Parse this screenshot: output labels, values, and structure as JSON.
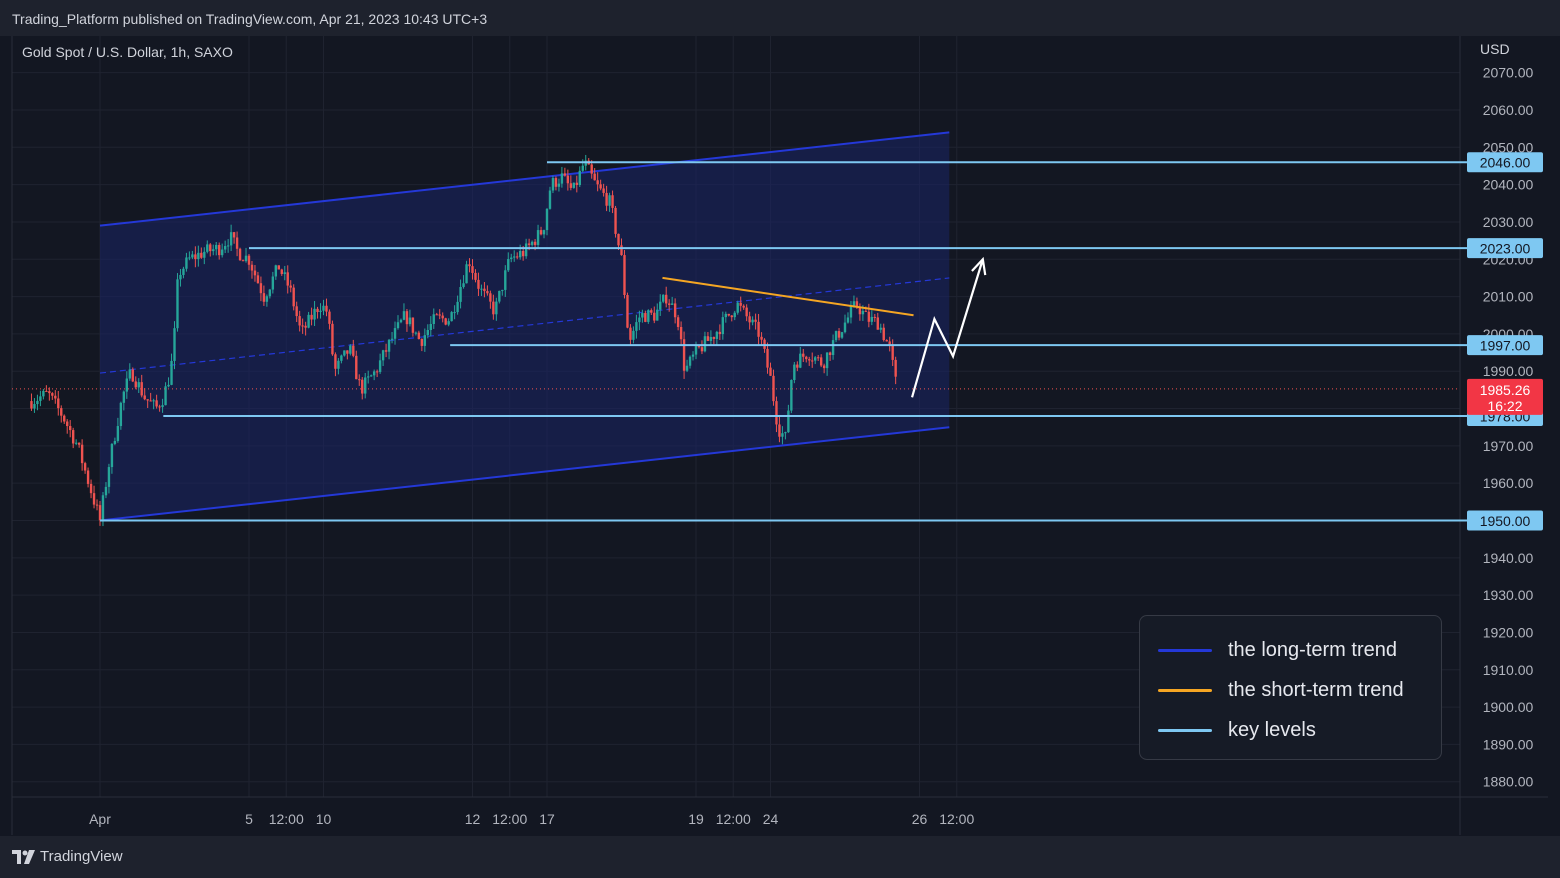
{
  "header": {
    "published": "Trading_Platform published on TradingView.com, Apr 21, 2023 10:43 UTC+3",
    "symbol": "Gold Spot / U.S. Dollar, 1h, SAXO",
    "currency": "USD"
  },
  "footer": {
    "brand": "TradingView",
    "logo_icon": "tradingview-logo-icon"
  },
  "colors": {
    "background": "#131722",
    "grid": "#1f2330",
    "up_candle": "#26a69a",
    "down_candle": "#ef5350",
    "long_term": "#2438d8",
    "short_term": "#f5a623",
    "key_level": "#7ec8f2",
    "channel_fill": "#1a2466"
  },
  "chart_data": {
    "type": "candlestick",
    "title": "Gold Spot / U.S. Dollar, 1h, SAXO",
    "ylabel": "USD",
    "ylim": [
      1876,
      2075
    ],
    "y_ticks": [
      2070,
      2060,
      2050,
      2040,
      2030,
      2020,
      2010,
      2000,
      1990,
      1980,
      1970,
      1960,
      1950,
      1940,
      1930,
      1920,
      1910,
      1900,
      1890,
      1880
    ],
    "y_tick_labels": [
      "2070.00",
      "2060.00",
      "2050.00",
      "2040.00",
      "2030.00",
      "2020.00",
      "2010.00",
      "2000.00",
      "1990.00",
      "1980.00",
      "1970.00",
      "1960.00",
      "1950.00",
      "1940.00",
      "1930.00",
      "1920.00",
      "1910.00",
      "1900.00",
      "1890.00",
      "1880.00"
    ],
    "x_ticks": [
      {
        "label": "Apr",
        "t": 0
      },
      {
        "label": "5",
        "t": 2
      },
      {
        "label": "12:00",
        "t": 2.5
      },
      {
        "label": "10",
        "t": 3
      },
      {
        "label": "12",
        "t": 5
      },
      {
        "label": "12:00",
        "t": 5.5
      },
      {
        "label": "17",
        "t": 6
      },
      {
        "label": "19",
        "t": 8
      },
      {
        "label": "12:00",
        "t": 8.5
      },
      {
        "label": "24",
        "t": 9
      },
      {
        "label": "26",
        "t": 11
      },
      {
        "label": "12:00",
        "t": 11.5
      }
    ],
    "x_range": [
      -0.92,
      11.5
    ],
    "price_path": [
      [
        -0.92,
        1982
      ],
      [
        -0.7,
        1984
      ],
      [
        -0.5,
        1978
      ],
      [
        -0.3,
        1970
      ],
      [
        -0.15,
        1960
      ],
      [
        0.0,
        1950
      ],
      [
        0.12,
        1965
      ],
      [
        0.3,
        1983
      ],
      [
        0.42,
        1990
      ],
      [
        0.6,
        1983
      ],
      [
        0.75,
        1980
      ],
      [
        0.85,
        1983
      ],
      [
        0.95,
        1990
      ],
      [
        1.0,
        2000
      ],
      [
        1.05,
        2016
      ],
      [
        1.2,
        2020
      ],
      [
        1.4,
        2022
      ],
      [
        1.6,
        2023
      ],
      [
        1.75,
        2026
      ],
      [
        1.85,
        2022
      ],
      [
        2.0,
        2020
      ],
      [
        2.2,
        2010
      ],
      [
        2.4,
        2018
      ],
      [
        2.55,
        2012
      ],
      [
        2.7,
        2000
      ],
      [
        2.95,
        2008
      ],
      [
        3.05,
        2006
      ],
      [
        3.15,
        1990
      ],
      [
        3.35,
        1996
      ],
      [
        3.5,
        1985
      ],
      [
        3.7,
        1990
      ],
      [
        3.9,
        1998
      ],
      [
        4.1,
        2005
      ],
      [
        4.3,
        1998
      ],
      [
        4.5,
        2004
      ],
      [
        4.7,
        2004
      ],
      [
        4.95,
        2020
      ],
      [
        5.1,
        2012
      ],
      [
        5.3,
        2006
      ],
      [
        5.5,
        2020
      ],
      [
        5.7,
        2022
      ],
      [
        5.95,
        2028
      ],
      [
        6.05,
        2040
      ],
      [
        6.2,
        2042
      ],
      [
        6.35,
        2038
      ],
      [
        6.5,
        2046
      ],
      [
        6.65,
        2040
      ],
      [
        6.85,
        2035
      ],
      [
        7.0,
        2020
      ],
      [
        7.1,
        1998
      ],
      [
        7.25,
        2005
      ],
      [
        7.45,
        2005
      ],
      [
        7.6,
        2010
      ],
      [
        7.75,
        2005
      ],
      [
        7.85,
        1990
      ],
      [
        8.0,
        1995
      ],
      [
        8.25,
        2000
      ],
      [
        8.4,
        2004
      ],
      [
        8.55,
        2008
      ],
      [
        8.7,
        2004
      ],
      [
        8.85,
        2000
      ],
      [
        9.0,
        1988
      ],
      [
        9.1,
        1975
      ],
      [
        9.2,
        1972
      ],
      [
        9.3,
        1992
      ],
      [
        9.5,
        1995
      ],
      [
        9.7,
        1992
      ],
      [
        9.85,
        1998
      ],
      [
        10.0,
        2003
      ],
      [
        10.15,
        2008
      ],
      [
        10.3,
        2004
      ],
      [
        10.45,
        2003
      ],
      [
        10.6,
        1996
      ],
      [
        10.7,
        1985
      ]
    ],
    "current_price": {
      "value": "1985.26",
      "countdown": "16:22",
      "y": 1985.26
    },
    "key_levels": [
      {
        "value": 2046,
        "label": "2046.00",
        "from_t": 6.0
      },
      {
        "value": 2023,
        "label": "2023.00",
        "from_t": 2.0
      },
      {
        "value": 1997,
        "label": "1997.00",
        "from_t": 4.7
      },
      {
        "value": 1978,
        "label": "1978.00",
        "from_t": 0.85
      },
      {
        "value": 1950,
        "label": "1950.00",
        "from_t": 0.0
      }
    ],
    "long_term_channel": {
      "upper": [
        [
          0.0,
          2029
        ],
        [
          11.4,
          2054
        ]
      ],
      "lower": [
        [
          0.0,
          1950
        ],
        [
          11.4,
          1975
        ]
      ],
      "mid": [
        [
          0.0,
          1989.5
        ],
        [
          11.4,
          2015
        ]
      ]
    },
    "short_term_trend": [
      [
        7.55,
        2015
      ],
      [
        10.92,
        2005
      ]
    ],
    "projection": [
      [
        10.9,
        1983
      ],
      [
        11.2,
        2004
      ],
      [
        11.45,
        1994
      ],
      [
        11.85,
        2020
      ]
    ],
    "legend": [
      {
        "label": "the long-term trend",
        "color": "#2438d8"
      },
      {
        "label": "the short-term trend",
        "color": "#f5a623"
      },
      {
        "label": "key levels",
        "color": "#7ec8f2"
      }
    ]
  }
}
